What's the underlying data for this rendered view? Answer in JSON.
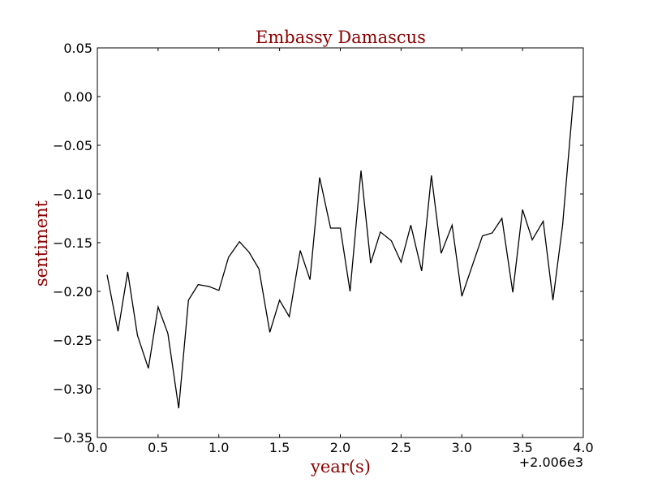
{
  "chart_data": {
    "type": "line",
    "title": "Embassy Damascus",
    "xlabel": "year(s)",
    "ylabel": "sentiment",
    "xlim": [
      0.0,
      4.0
    ],
    "ylim": [
      -0.35,
      0.05
    ],
    "x_offset_label": "+2.006e3",
    "x_ticks": [
      "0.0",
      "0.5",
      "1.0",
      "1.5",
      "2.0",
      "2.5",
      "3.0",
      "3.5",
      "4.0"
    ],
    "y_ticks": [
      "0.05",
      "0.00",
      "−0.05",
      "−0.10",
      "−0.15",
      "−0.20",
      "−0.25",
      "−0.30",
      "−0.35"
    ],
    "grid": false,
    "line_color": "#000000",
    "series": [
      {
        "x": [
          0.08,
          0.17,
          0.25,
          0.33,
          0.42,
          0.5,
          0.58,
          0.67,
          0.75,
          0.83,
          0.92,
          1.0,
          1.08,
          1.17,
          1.25,
          1.33,
          1.42,
          1.5,
          1.58,
          1.67,
          1.75,
          1.83,
          1.92,
          2.0,
          2.08,
          2.17,
          2.25,
          2.33,
          2.42,
          2.5,
          2.58,
          2.67,
          2.75,
          2.83,
          2.92,
          3.0,
          3.17,
          3.25,
          3.33,
          3.42,
          3.5,
          3.58,
          3.67,
          3.75,
          3.83,
          3.92,
          4.0
        ],
        "y": [
          -0.183,
          -0.241,
          -0.18,
          -0.245,
          -0.279,
          -0.216,
          -0.243,
          -0.32,
          -0.209,
          -0.193,
          -0.195,
          -0.199,
          -0.165,
          -0.149,
          -0.16,
          -0.177,
          -0.242,
          -0.209,
          -0.226,
          -0.158,
          -0.188,
          -0.083,
          -0.135,
          -0.135,
          -0.2,
          -0.076,
          -0.171,
          -0.139,
          -0.148,
          -0.17,
          -0.132,
          -0.179,
          -0.081,
          -0.161,
          -0.132,
          -0.205,
          -0.143,
          -0.14,
          -0.125,
          -0.201,
          -0.116,
          -0.147,
          -0.128,
          -0.209,
          -0.132,
          0.0,
          0.0
        ]
      }
    ]
  }
}
